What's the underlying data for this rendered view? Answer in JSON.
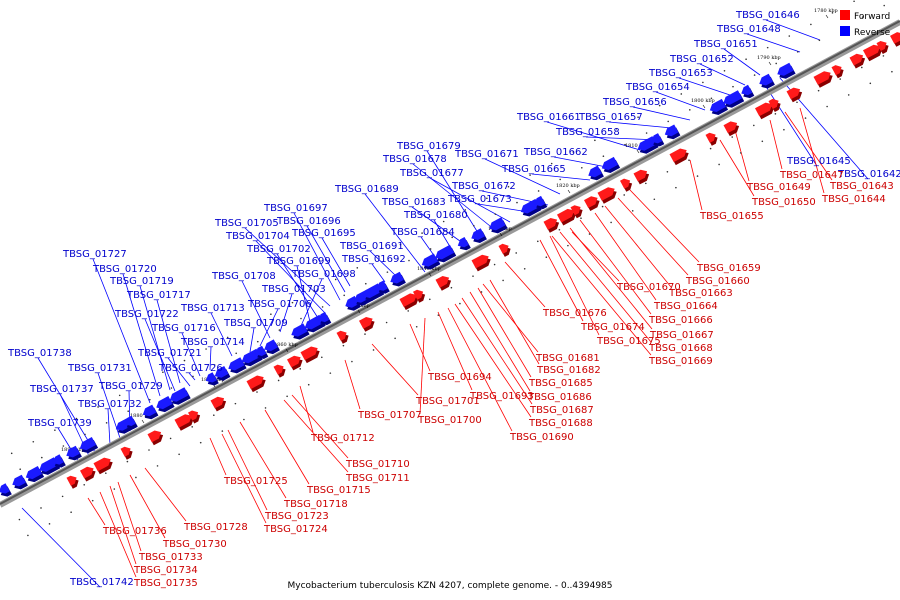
{
  "caption": "Mycobacterium tuberculosis KZN 4207, complete genome. - 0..4394985",
  "legend": {
    "forward_label": "Forward",
    "reverse_label": "Reverse",
    "forward_color": "#ff0000",
    "reverse_color": "#0000ff"
  },
  "ticks": [
    "1890 kbp",
    "1880 kbp",
    "1870 kbp",
    "1860 kbp",
    "1850 kbp",
    "1840 kbp",
    "1830 kbp",
    "1820 kbp",
    "1810 kbp",
    "1800 kbp",
    "1790 kbp",
    "1780 kbp"
  ],
  "reverse_genes": [
    "TBSG_01646",
    "TBSG_01648",
    "TBSG_01651",
    "TBSG_01652",
    "TBSG_01653",
    "TBSG_01654",
    "TBSG_01656",
    "TBSG_01657",
    "TBSG_01658",
    "TBSG_01661",
    "TBSG_01662",
    "TBSG_01665",
    "TBSG_01671",
    "TBSG_01672",
    "TBSG_01673",
    "TBSG_01677",
    "TBSG_01678",
    "TBSG_01679",
    "TBSG_01683",
    "TBSG_01680",
    "TBSG_01684",
    "TBSG_01689",
    "TBSG_01697",
    "TBSG_01696",
    "TBSG_01695",
    "TBSG_01705",
    "TBSG_01704",
    "TBSG_01702",
    "TBSG_01691",
    "TBSG_01692",
    "TBSG_01699",
    "TBSG_01698",
    "TBSG_01708",
    "TBSG_01703",
    "TBSG_01706",
    "TBSG_01713",
    "TBSG_01709",
    "TBSG_01727",
    "TBSG_01720",
    "TBSG_01719",
    "TBSG_01717",
    "TBSG_01722",
    "TBSG_01716",
    "TBSG_01714",
    "TBSG_01721",
    "TBSG_01726",
    "TBSG_01738",
    "TBSG_01731",
    "TBSG_01729",
    "TBSG_01737",
    "TBSG_01732",
    "TBSG_01739",
    "TBSG_01645",
    "TBSG_01642",
    "TBSG_01742"
  ],
  "forward_genes": [
    "TBSG_01647",
    "TBSG_01643",
    "TBSG_01649",
    "TBSG_01644",
    "TBSG_01650",
    "TBSG_01655",
    "TBSG_01659",
    "TBSG_01660",
    "TBSG_01670",
    "TBSG_01663",
    "TBSG_01664",
    "TBSG_01666",
    "TBSG_01676",
    "TBSG_01667",
    "TBSG_01674",
    "TBSG_01675",
    "TBSG_01668",
    "TBSG_01669",
    "TBSG_01681",
    "TBSG_01682",
    "TBSG_01694",
    "TBSG_01685",
    "TBSG_01693",
    "TBSG_01686",
    "TBSG_01701",
    "TBSG_01687",
    "TBSG_01707",
    "TBSG_01700",
    "TBSG_01688",
    "TBSG_01690",
    "TBSG_01712",
    "TBSG_01710",
    "TBSG_01711",
    "TBSG_01725",
    "TBSG_01715",
    "TBSG_01718",
    "TBSG_01723",
    "TBSG_01728",
    "TBSG_01724",
    "TBSG_01736",
    "TBSG_01730",
    "TBSG_01733",
    "TBSG_01734",
    "TBSG_01735"
  ]
}
